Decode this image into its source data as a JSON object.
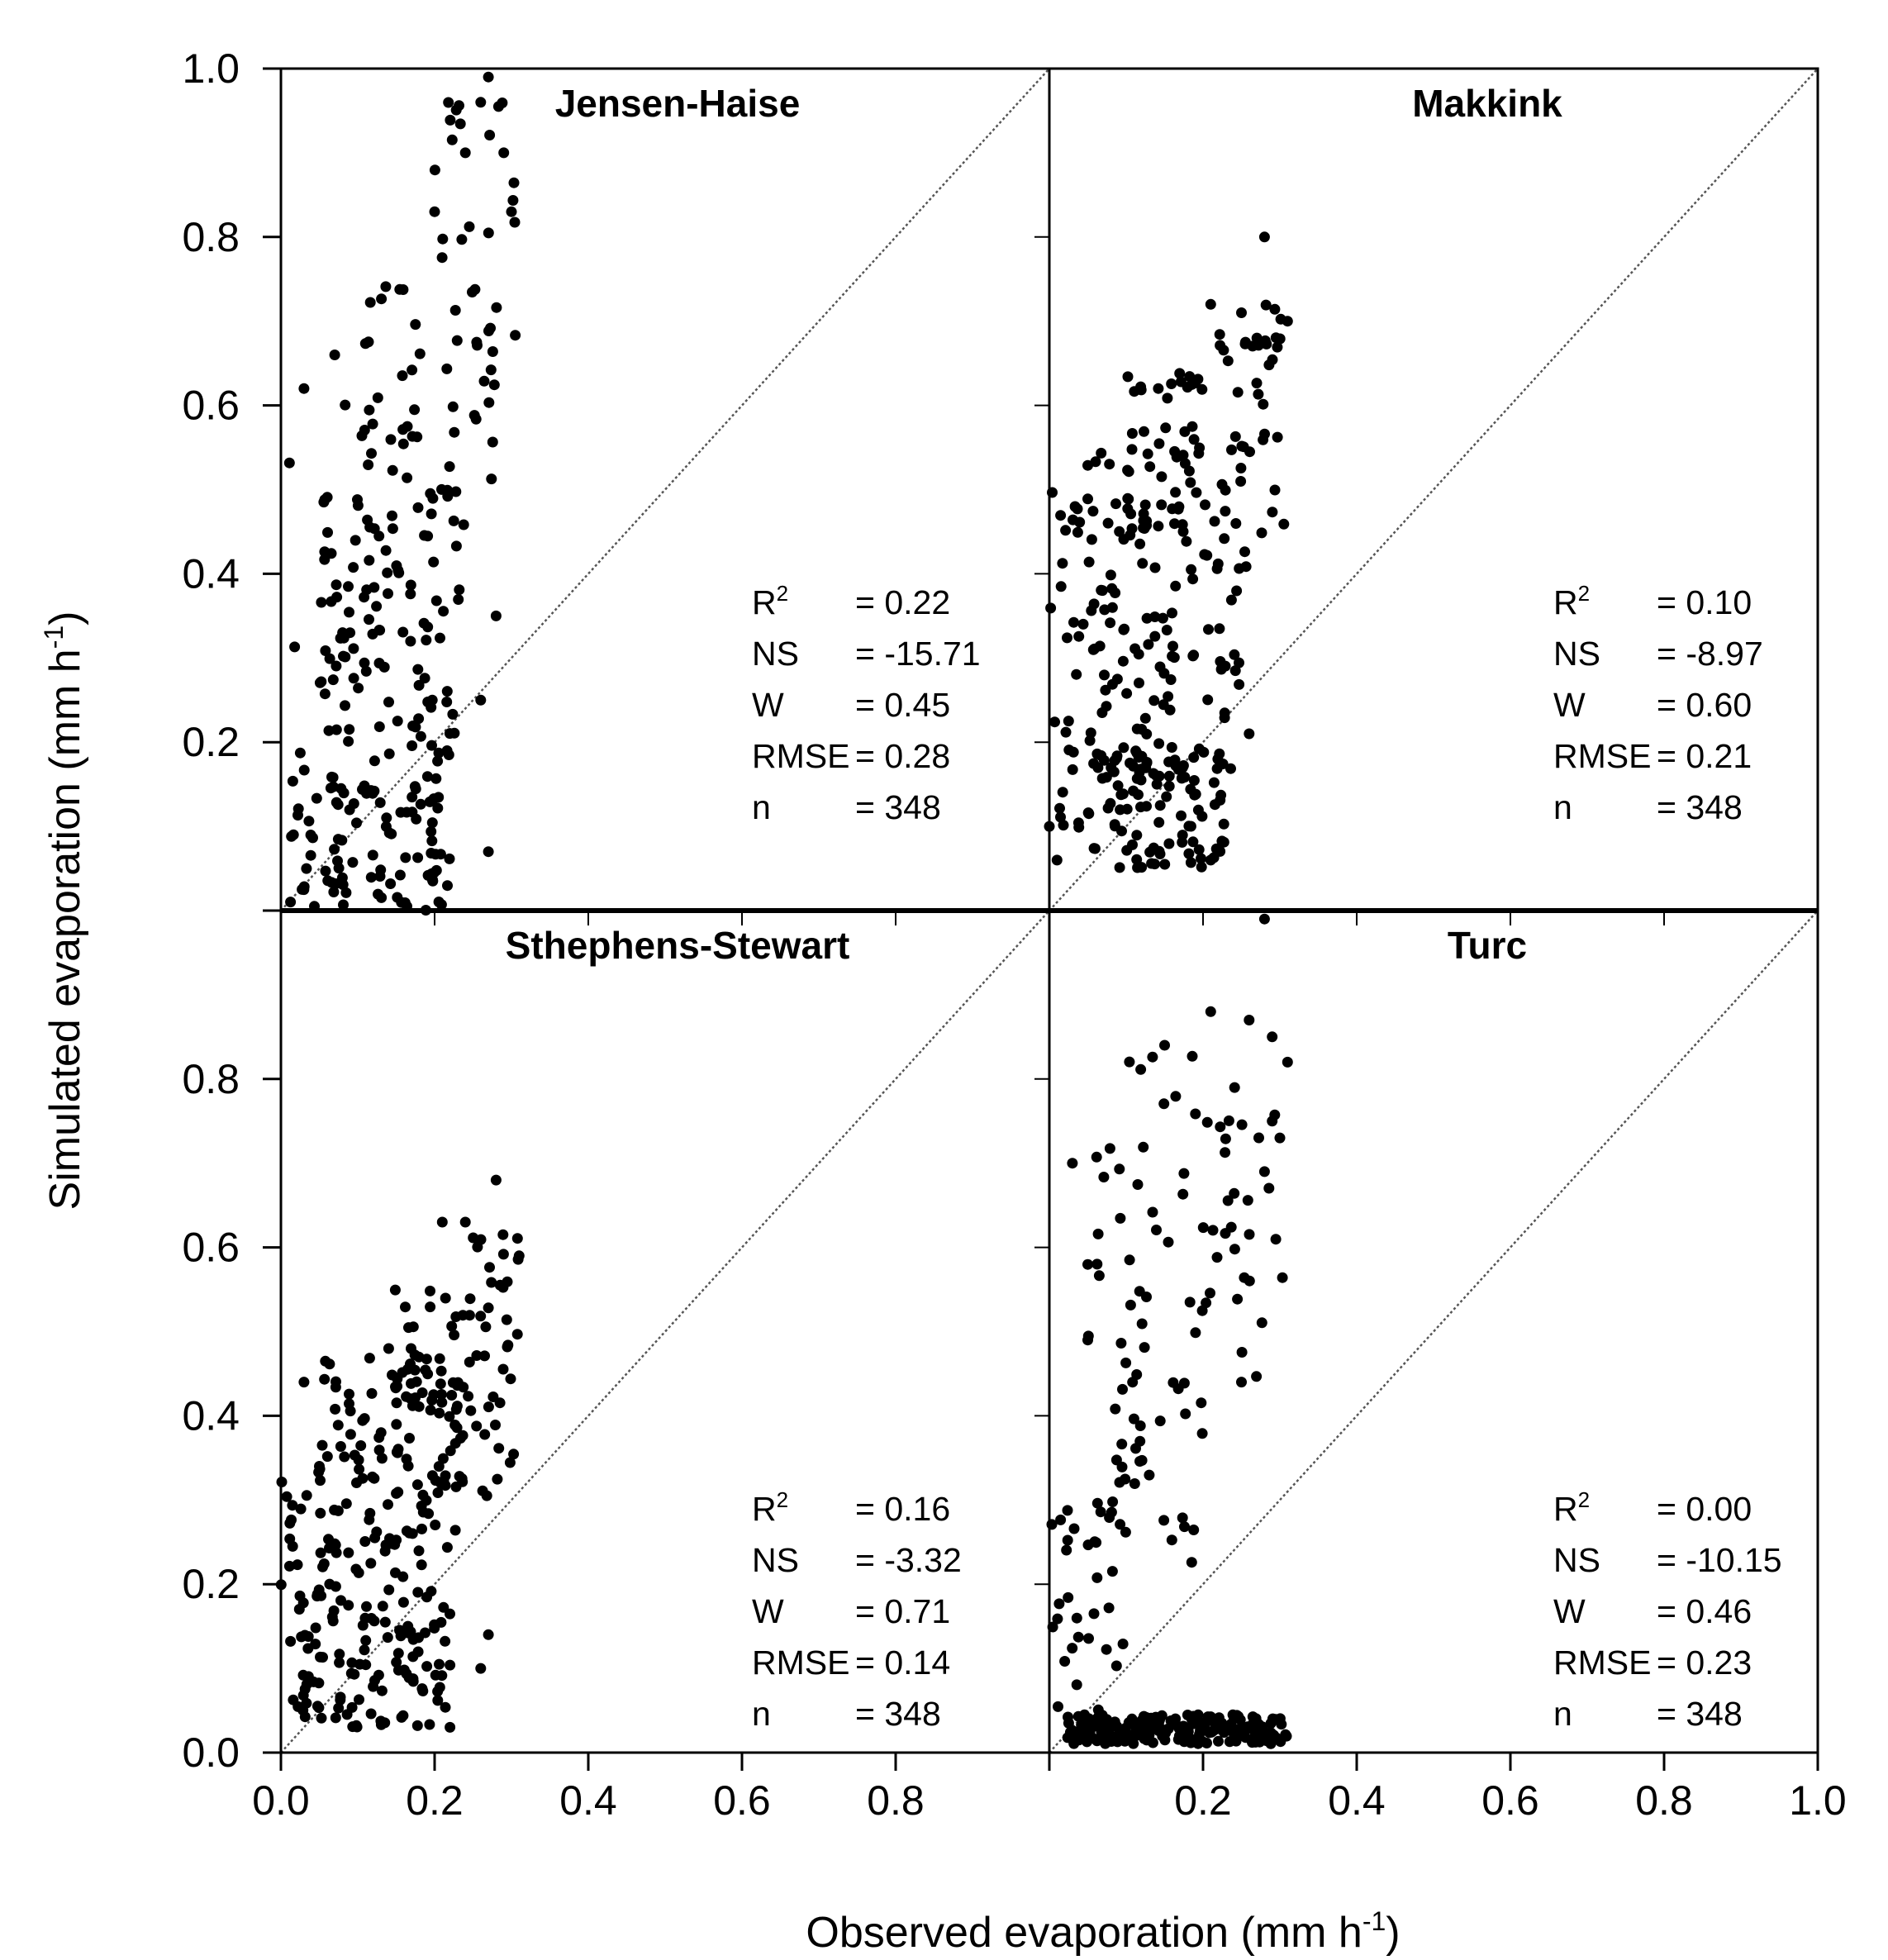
{
  "chart_data": {
    "type": "scatter",
    "layout": "2x2 panels sharing axes",
    "xlabel": "Observed evaporation (mm h",
    "xlabel_sup": "-1",
    "xlabel_end": ")",
    "ylabel": "Simulated evaporation (mm h",
    "ylabel_sup": "-1",
    "ylabel_end": ")",
    "xlim": [
      0,
      1.0
    ],
    "ylim": [
      0,
      1.0
    ],
    "x_tick_labels": [
      "0.0",
      "0.2",
      "0.4",
      "0.6",
      "0.8",
      "0.2",
      "0.4",
      "0.6",
      "0.8",
      "1.0"
    ],
    "y_tick_labels_upper": [
      "1.0",
      "0.8",
      "0.6",
      "0.4",
      "0.2"
    ],
    "y_tick_labels_lower": [
      "0.8",
      "0.6",
      "0.4",
      "0.2",
      "0.0"
    ],
    "reference_line": "1:1 dotted diagonal",
    "panels": [
      {
        "title": "Jensen-Haise",
        "stats": [
          {
            "label": "R",
            "sup": "2",
            "value": "= 0.22"
          },
          {
            "label": "NS",
            "sup": "",
            "value": "= -15.71"
          },
          {
            "label": "W",
            "sup": "",
            "value": "= 0.45"
          },
          {
            "label": "RMSE",
            "sup": "",
            "value": "= 0.28"
          },
          {
            "label": "n",
            "sup": "",
            "value": "= 348"
          }
        ],
        "clusters": [
          {
            "n": 110,
            "x": [
              0.01,
              0.22
            ],
            "y": [
              0.0,
              0.2
            ]
          },
          {
            "n": 95,
            "x": [
              0.05,
              0.24
            ],
            "y": [
              0.2,
              0.5
            ]
          },
          {
            "n": 50,
            "x": [
              0.1,
              0.28
            ],
            "y": [
              0.45,
              0.75
            ]
          },
          {
            "n": 24,
            "x": [
              0.2,
              0.31
            ],
            "y": [
              0.6,
              0.99
            ]
          },
          {
            "n": 9,
            "x": [
              0.01,
              0.09
            ],
            "y": [
              0.2,
              0.63
            ]
          }
        ],
        "points": [
          [
            0.27,
            0.99
          ],
          [
            0.26,
            0.96
          ],
          [
            0.29,
            0.9
          ],
          [
            0.3,
            0.83
          ],
          [
            0.24,
            0.9
          ],
          [
            0.2,
            0.83
          ],
          [
            0.03,
            0.62
          ],
          [
            0.07,
            0.66
          ],
          [
            0.28,
            0.35
          ],
          [
            0.26,
            0.25
          ],
          [
            0.27,
            0.07
          ]
        ]
      },
      {
        "title": "Makkink",
        "stats": [
          {
            "label": "R",
            "sup": "2",
            "value": "= 0.10"
          },
          {
            "label": "NS",
            "sup": "",
            "value": "= -8.97"
          },
          {
            "label": "W",
            "sup": "",
            "value": "= 0.60"
          },
          {
            "label": "RMSE",
            "sup": "",
            "value": "= 0.21"
          },
          {
            "label": "n",
            "sup": "",
            "value": "= 348"
          }
        ],
        "clusters": [
          {
            "n": 95,
            "x": [
              0.05,
              0.23
            ],
            "y": [
              0.05,
              0.2
            ]
          },
          {
            "n": 130,
            "x": [
              0.03,
              0.25
            ],
            "y": [
              0.15,
              0.55
            ]
          },
          {
            "n": 40,
            "x": [
              0.1,
              0.2
            ],
            "y": [
              0.45,
              0.64
            ]
          },
          {
            "n": 40,
            "x": [
              0.22,
              0.31
            ],
            "y": [
              0.4,
              0.72
            ]
          },
          {
            "n": 30,
            "x": [
              0.0,
              0.06
            ],
            "y": [
              0.08,
              0.5
            ]
          }
        ],
        "points": [
          [
            0.28,
            0.8
          ],
          [
            0.21,
            0.72
          ],
          [
            0.31,
            0.7
          ],
          [
            0.25,
            0.71
          ],
          [
            0.0,
            0.1
          ],
          [
            0.01,
            0.06
          ],
          [
            0.21,
            0.06
          ],
          [
            0.26,
            0.21
          ]
        ]
      },
      {
        "title": "Sthephens-Stewart",
        "stats": [
          {
            "label": "R",
            "sup": "2",
            "value": "= 0.16"
          },
          {
            "label": "NS",
            "sup": "",
            "value": "= -3.32"
          },
          {
            "label": "W",
            "sup": "",
            "value": "= 0.71"
          },
          {
            "label": "RMSE",
            "sup": "",
            "value": "= 0.14"
          },
          {
            "label": "n",
            "sup": "",
            "value": "= 348"
          }
        ],
        "clusters": [
          {
            "n": 110,
            "x": [
              0.02,
              0.22
            ],
            "y": [
              0.03,
              0.2
            ]
          },
          {
            "n": 130,
            "x": [
              0.05,
              0.24
            ],
            "y": [
              0.2,
              0.47
            ]
          },
          {
            "n": 30,
            "x": [
              0.14,
              0.24
            ],
            "y": [
              0.4,
              0.55
            ]
          },
          {
            "n": 40,
            "x": [
              0.24,
              0.31
            ],
            "y": [
              0.3,
              0.62
            ]
          },
          {
            "n": 20,
            "x": [
              0.0,
              0.05
            ],
            "y": [
              0.05,
              0.34
            ]
          }
        ],
        "points": [
          [
            0.28,
            0.68
          ],
          [
            0.21,
            0.63
          ],
          [
            0.24,
            0.63
          ],
          [
            0.31,
            0.59
          ],
          [
            0.03,
            0.44
          ],
          [
            0.05,
            0.34
          ],
          [
            0.26,
            0.1
          ],
          [
            0.27,
            0.14
          ],
          [
            0.22,
            0.03
          ]
        ]
      },
      {
        "title": "Turc",
        "stats": [
          {
            "label": "R",
            "sup": "2",
            "value": "= 0.00"
          },
          {
            "label": "NS",
            "sup": "",
            "value": "= -10.15"
          },
          {
            "label": "W",
            "sup": "",
            "value": "= 0.46"
          },
          {
            "label": "RMSE",
            "sup": "",
            "value": "= 0.23"
          },
          {
            "label": "n",
            "sup": "",
            "value": "= 348"
          }
        ],
        "clusters": [
          {
            "n": 200,
            "x": [
              0.02,
              0.31
            ],
            "y": [
              0.01,
              0.045
            ]
          },
          {
            "n": 30,
            "x": [
              0.0,
              0.1
            ],
            "y": [
              0.05,
              0.3
            ]
          },
          {
            "n": 40,
            "x": [
              0.05,
              0.2
            ],
            "y": [
              0.2,
              0.5
            ]
          },
          {
            "n": 40,
            "x": [
              0.05,
              0.25
            ],
            "y": [
              0.5,
              0.83
            ]
          },
          {
            "n": 20,
            "x": [
              0.2,
              0.31
            ],
            "y": [
              0.43,
              0.87
            ]
          }
        ],
        "points": [
          [
            0.28,
            0.99
          ],
          [
            0.21,
            0.88
          ],
          [
            0.26,
            0.87
          ],
          [
            0.29,
            0.85
          ],
          [
            0.31,
            0.82
          ],
          [
            0.29,
            0.75
          ],
          [
            0.03,
            0.7
          ],
          [
            0.05,
            0.49
          ],
          [
            0.15,
            0.84
          ],
          [
            0.25,
            0.44
          ],
          [
            0.28,
            0.69
          ],
          [
            0.3,
            0.73
          ]
        ]
      }
    ]
  }
}
